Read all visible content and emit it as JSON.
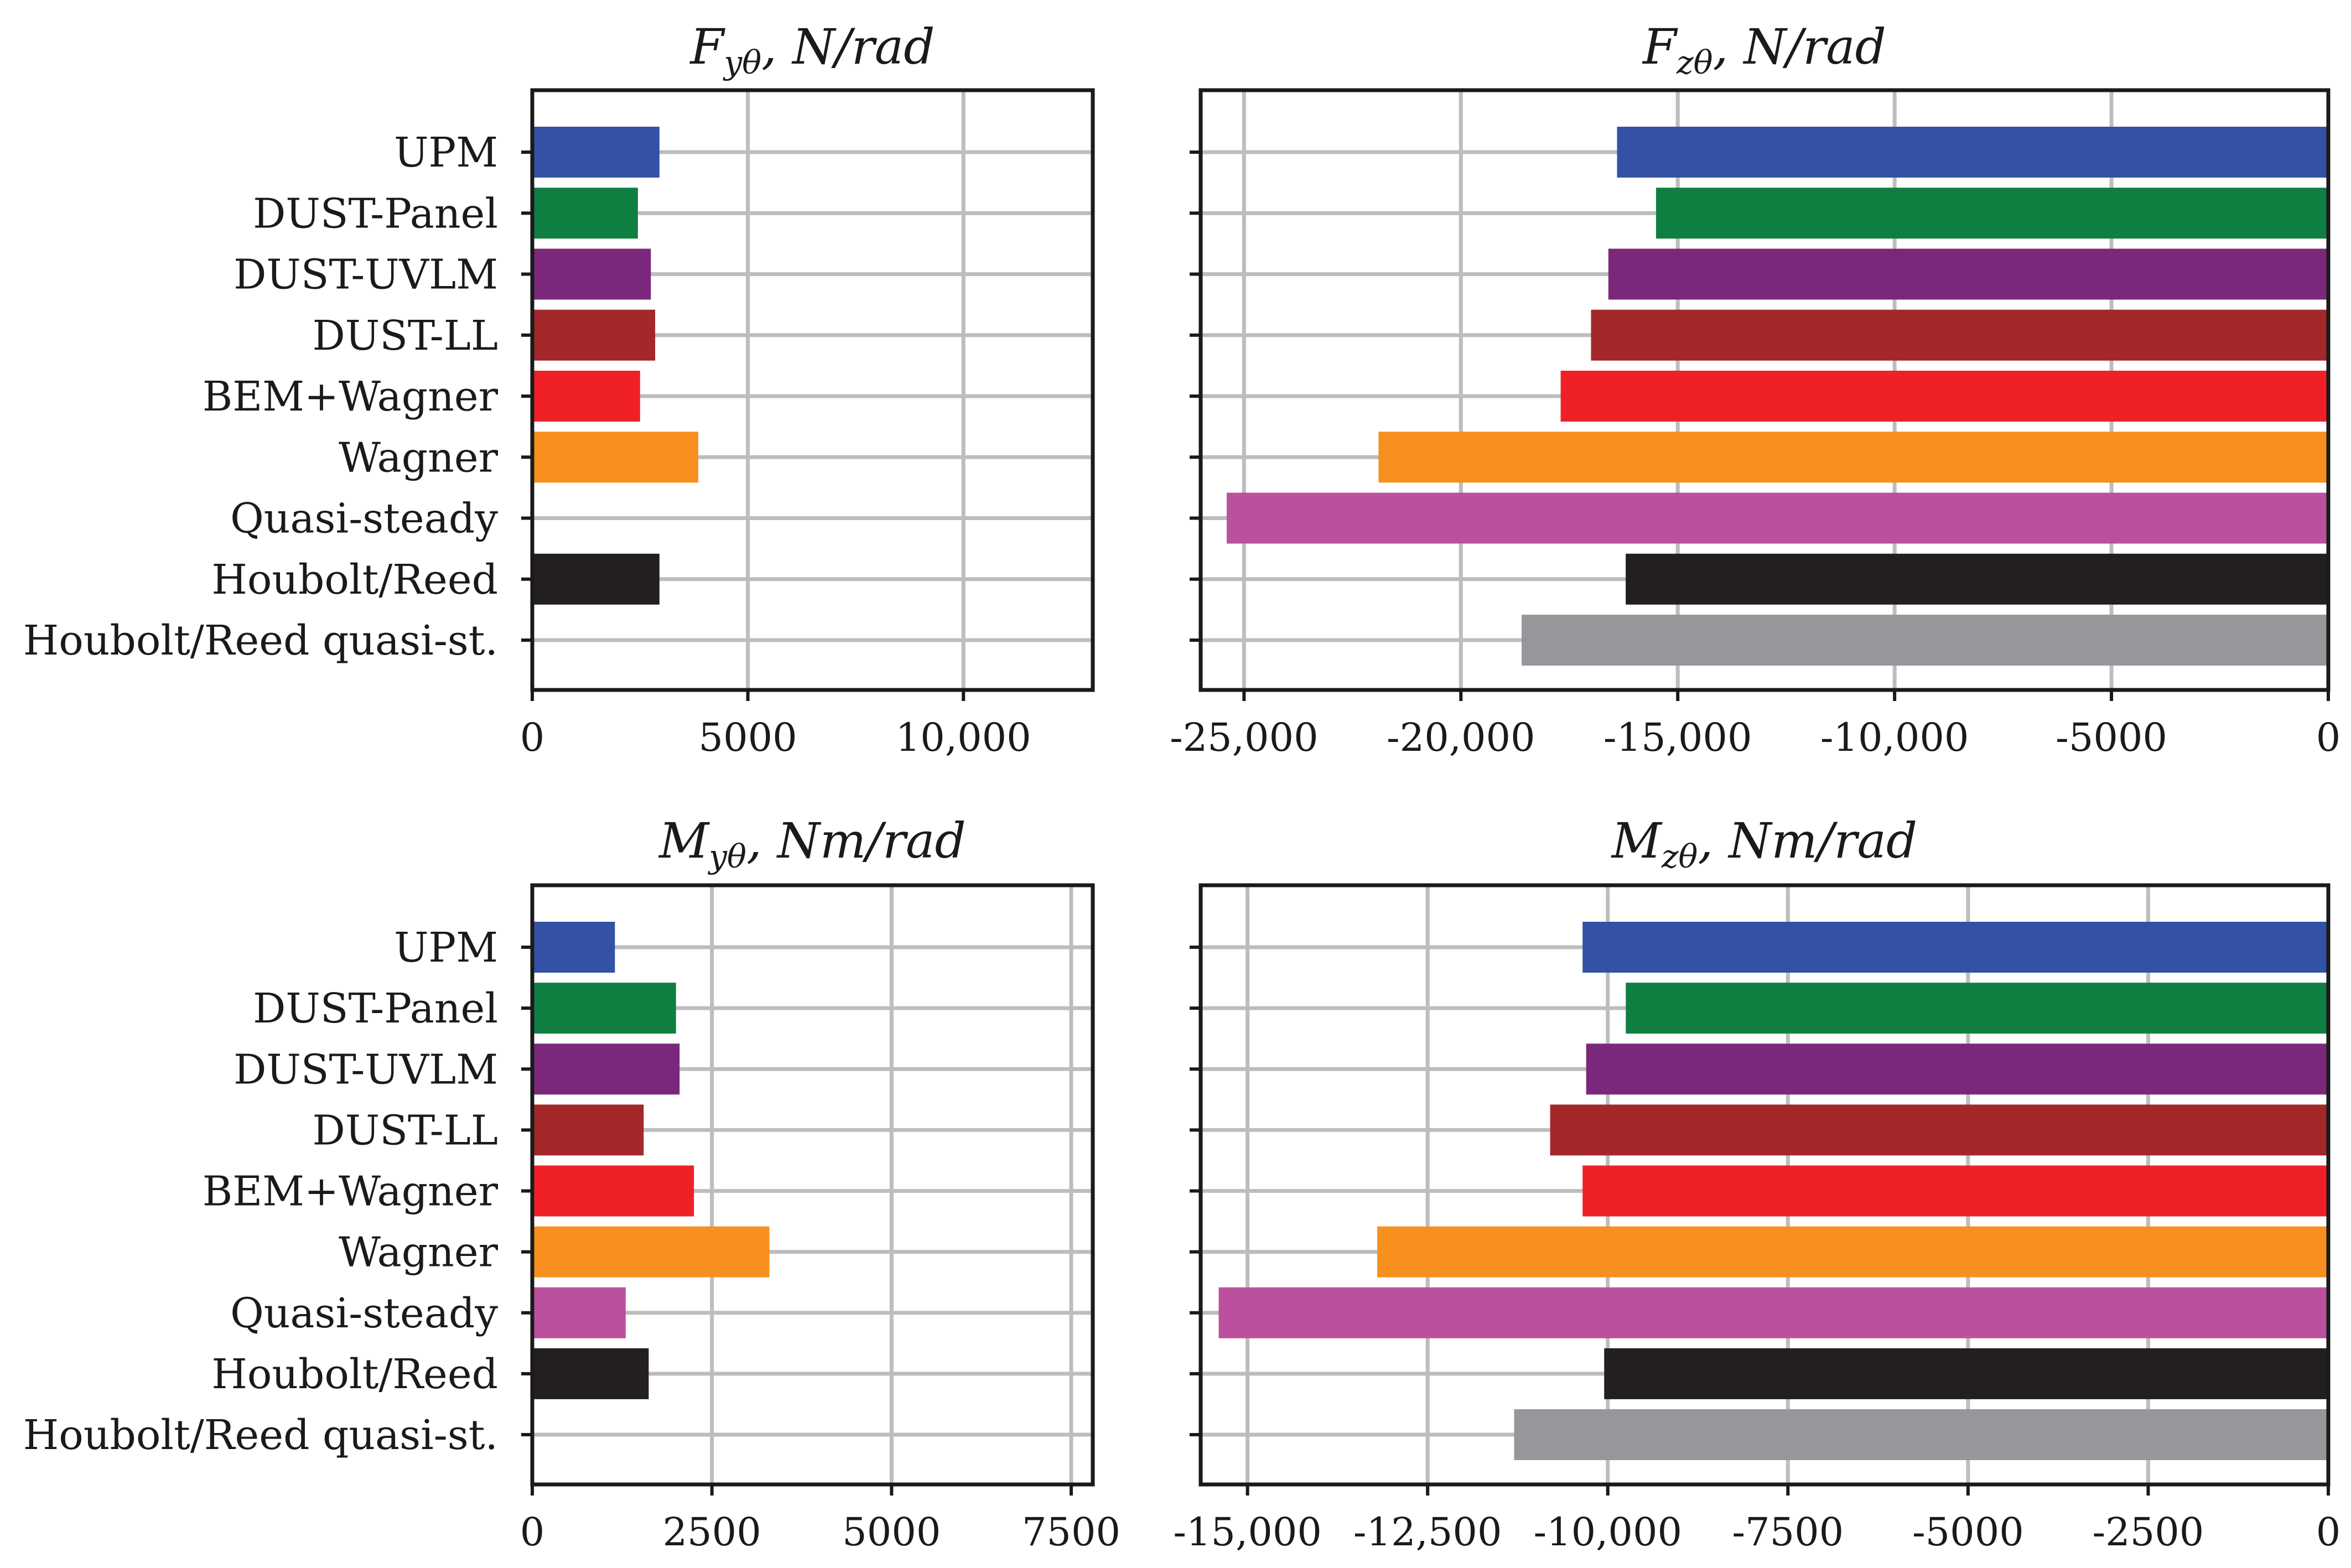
{
  "chart_data": [
    {
      "type": "bar",
      "orientation": "horizontal",
      "title": "F_yθ, N/rad",
      "title_parts": {
        "sym": "F",
        "sub": "yθ",
        "unit": ", N/rad"
      },
      "categories": [
        "UPM",
        "DUST-Panel",
        "DUST-UVLM",
        "DUST-LL",
        "BEM+Wagner",
        "Wagner",
        "Quasi-steady",
        "Houbolt/Reed",
        "Houbolt/Reed quasi-st."
      ],
      "values": [
        2950,
        2450,
        2750,
        2850,
        2500,
        3850,
        0,
        2950,
        0
      ],
      "colors": [
        "#3352a6",
        "#0f7f41",
        "#7b287c",
        "#a3282a",
        "#ef2127",
        "#f7901e",
        "#bb519e",
        "#231f20",
        "#96979a"
      ],
      "xlim": [
        0,
        13000
      ],
      "xticks": [
        0,
        5000,
        10000
      ],
      "xtick_labels": [
        "0",
        "5000",
        "10,000"
      ],
      "show_category_labels": true,
      "grid": true
    },
    {
      "type": "bar",
      "orientation": "horizontal",
      "title": "F_zθ, N/rad",
      "title_parts": {
        "sym": "F",
        "sub": "zθ",
        "unit": ", N/rad"
      },
      "categories": [
        "UPM",
        "DUST-Panel",
        "DUST-UVLM",
        "DUST-LL",
        "BEM+Wagner",
        "Wagner",
        "Quasi-steady",
        "Houbolt/Reed",
        "Houbolt/Reed quasi-st."
      ],
      "values": [
        -16400,
        -15500,
        -16600,
        -17000,
        -17700,
        -21900,
        -25400,
        -16200,
        -18600
      ],
      "colors": [
        "#3352a6",
        "#0f7f41",
        "#7b287c",
        "#a3282a",
        "#ef2127",
        "#f7901e",
        "#bb519e",
        "#231f20",
        "#96979a"
      ],
      "xlim": [
        -26000,
        0
      ],
      "xticks": [
        -25000,
        -20000,
        -15000,
        -10000,
        -5000,
        0
      ],
      "xtick_labels": [
        "-25,000",
        "-20,000",
        "-15,000",
        "-10,000",
        "-5000",
        "0"
      ],
      "show_category_labels": false,
      "grid": true
    },
    {
      "type": "bar",
      "orientation": "horizontal",
      "title": "M_yθ, Nm/rad",
      "title_parts": {
        "sym": "M",
        "sub": "yθ",
        "unit": ", Nm/rad"
      },
      "categories": [
        "UPM",
        "DUST-Panel",
        "DUST-UVLM",
        "DUST-LL",
        "BEM+Wagner",
        "Wagner",
        "Quasi-steady",
        "Houbolt/Reed",
        "Houbolt/Reed quasi-st."
      ],
      "values": [
        1150,
        2000,
        2050,
        1550,
        2250,
        3300,
        1300,
        1620,
        0
      ],
      "colors": [
        "#3352a6",
        "#0f7f41",
        "#7b287c",
        "#a3282a",
        "#ef2127",
        "#f7901e",
        "#bb519e",
        "#231f20",
        "#96979a"
      ],
      "xlim": [
        0,
        7800
      ],
      "xticks": [
        0,
        2500,
        5000,
        7500
      ],
      "xtick_labels": [
        "0",
        "2500",
        "5000",
        "7500"
      ],
      "show_category_labels": true,
      "grid": true
    },
    {
      "type": "bar",
      "orientation": "horizontal",
      "title": "M_zθ, Nm/rad",
      "title_parts": {
        "sym": "M",
        "sub": "zθ",
        "unit": ", Nm/rad"
      },
      "categories": [
        "UPM",
        "DUST-Panel",
        "DUST-UVLM",
        "DUST-LL",
        "BEM+Wagner",
        "Wagner",
        "Quasi-steady",
        "Houbolt/Reed",
        "Houbolt/Reed quasi-st."
      ],
      "values": [
        -10350,
        -9750,
        -10300,
        -10800,
        -10350,
        -13200,
        -15400,
        -10050,
        -11300
      ],
      "colors": [
        "#3352a6",
        "#0f7f41",
        "#7b287c",
        "#a3282a",
        "#ef2127",
        "#f7901e",
        "#bb519e",
        "#231f20",
        "#96979a"
      ],
      "xlim": [
        -15650,
        0
      ],
      "xticks": [
        -15000,
        -12500,
        -10000,
        -7500,
        -5000,
        -2500,
        0
      ],
      "xtick_labels": [
        "-15,000",
        "-12,500",
        "-10,000",
        "-7500",
        "-5000",
        "-2500",
        "0"
      ],
      "show_category_labels": false,
      "grid": true
    }
  ]
}
